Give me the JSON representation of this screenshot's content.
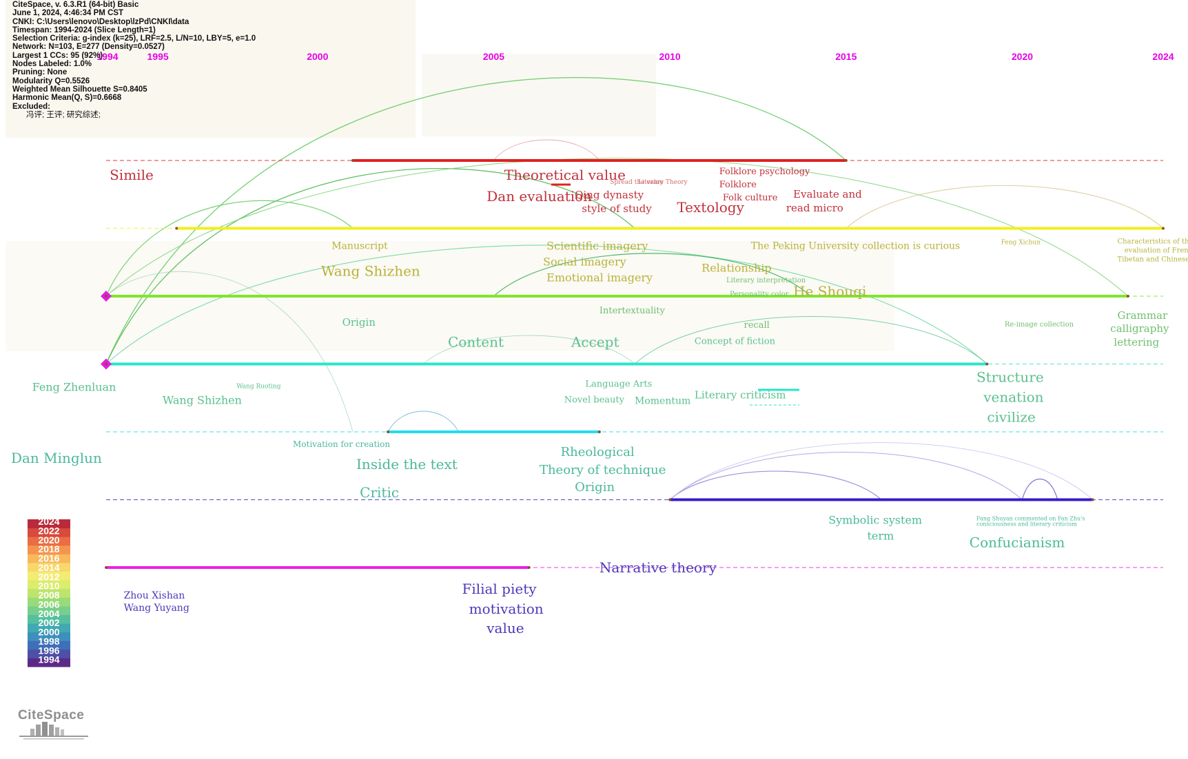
{
  "info_lines": [
    "CiteSpace, v. 6.3.R1 (64-bit) Basic",
    "June 1, 2024, 4:46:34 PM CST",
    "CNKI: C:\\Users\\lenovo\\Desktop\\lzPd\\CNKI\\data",
    "Timespan: 1994-2024 (Slice Length=1)",
    "Selection Criteria: g-index (k=25), LRF=2.5, L/N=10, LBY=5, e=1.0",
    "Network: N=103, E=277 (Density=0.0527)",
    "Largest 1 CCs: 95 (92%)",
    "Nodes Labeled: 1.0%",
    "Pruning: None",
    "Modularity Q=0.5526",
    "Weighted Mean Silhouette S=0.8405",
    "Harmonic Mean(Q, S)=0.6668",
    "Excluded:"
  ],
  "excluded_terms": "冯评; 王评; 研究综述;",
  "logo_text": "CiteSpace",
  "colors": {
    "year_label": "#e600e6",
    "cluster_node": "#e21ce0",
    "legend": [
      "#5b2a86",
      "#4e4fa7",
      "#3f6fb9",
      "#3d8fbd",
      "#42a9b2",
      "#56bfa0",
      "#77cf8b",
      "#9adb79",
      "#bde56d",
      "#dcec6b",
      "#f3ec73",
      "#f8d86a",
      "#f8b85c",
      "#f4944e",
      "#ea6d44",
      "#d84a3d",
      "#bb2a3a"
    ]
  },
  "chart_data": {
    "type": "timeline",
    "x_range": [
      1994,
      2024
    ],
    "year_ticks": [
      "1994",
      "1995",
      "2000",
      "2005",
      "2010",
      "2015",
      "2020",
      "2024"
    ],
    "lanes": [
      {
        "color": "#e02020",
        "start": 1994,
        "end": 2024,
        "active_start": 2001,
        "active_end": 2015,
        "start_node": false
      },
      {
        "color": "#f2ef1c",
        "start": 1994,
        "end": 2024,
        "active_start": 1996,
        "active_end": 2024,
        "start_node": false
      },
      {
        "color": "#7ee82a",
        "start": 1994,
        "end": 2024,
        "active_start": 1994,
        "active_end": 2023,
        "start_node": true
      },
      {
        "color": "#26e6c8",
        "start": 1994,
        "end": 2024,
        "active_start": 1994,
        "active_end": 2019,
        "start_node": true
      },
      {
        "color": "#25dbee",
        "start": 1994,
        "end": 2024,
        "active_start": 2002,
        "active_end": 2008,
        "start_node": false
      },
      {
        "color": "#3a1ac8",
        "start": 1994,
        "end": 2024,
        "active_start": 2010,
        "active_end": 2022,
        "start_node": false
      },
      {
        "color": "#ee1ee6",
        "start": 1994,
        "end": 2024,
        "active_start": 1994,
        "active_end": 2006,
        "start_node": false
      }
    ],
    "links": [
      {
        "from": [
          3,
          1994
        ],
        "to": [
          0,
          2015
        ],
        "color": "#5cc95c",
        "w": 1.3
      },
      {
        "from": [
          3,
          1994
        ],
        "to": [
          1,
          2009
        ],
        "color": "#49b44c",
        "w": 1.3
      },
      {
        "from": [
          2,
          1994
        ],
        "to": [
          1,
          2001
        ],
        "color": "#5cc95c",
        "w": 1.2
      },
      {
        "from": [
          2,
          1994
        ],
        "to": [
          2,
          2023
        ],
        "color": "#7fd47a",
        "w": 1.1
      },
      {
        "from": [
          3,
          1994
        ],
        "to": [
          3,
          2019
        ],
        "color": "#64d69a",
        "w": 1.1
      },
      {
        "from": [
          2,
          2005
        ],
        "to": [
          2,
          2014
        ],
        "color": "#2faa52",
        "w": 1.2
      },
      {
        "from": [
          1,
          2015
        ],
        "to": [
          1,
          2024
        ],
        "color": "#d6c78f",
        "w": 1.1
      },
      {
        "from": [
          3,
          2009
        ],
        "to": [
          3,
          2019
        ],
        "color": "#67c7a0",
        "w": 1.0
      },
      {
        "from": [
          3,
          2003
        ],
        "to": [
          3,
          2009
        ],
        "color": "#8fd0b0",
        "w": 0.8
      },
      {
        "from": [
          0,
          2005
        ],
        "to": [
          0,
          2008
        ],
        "color": "#e59aa0",
        "w": 0.9
      },
      {
        "from": [
          4,
          2002
        ],
        "to": [
          4,
          2004
        ],
        "color": "#6aaed0",
        "w": 1.0
      },
      {
        "from": [
          5,
          2010
        ],
        "to": [
          5,
          2016
        ],
        "color": "#8a7ed8",
        "w": 1.2
      },
      {
        "from": [
          5,
          2010
        ],
        "to": [
          5,
          2020
        ],
        "color": "#a39ae0",
        "w": 1.0
      },
      {
        "from": [
          5,
          2010
        ],
        "to": [
          5,
          2022
        ],
        "color": "#c2bdec",
        "w": 0.9
      },
      {
        "from": [
          5,
          2020
        ],
        "to": [
          5,
          2021
        ],
        "color": "#6a5ad0",
        "w": 1.2
      },
      {
        "from": [
          2,
          1994
        ],
        "to": [
          4,
          2001
        ],
        "color": "#9ad2b4",
        "w": 0.8
      }
    ],
    "clusters": [
      {
        "labels": [
          {
            "text": "Simile",
            "x": 1994.1,
            "size": 20,
            "color": "#c0303a"
          },
          {
            "text": "Theoretical value",
            "x": 2005.3,
            "size": 20,
            "color": "#c0303a"
          },
          {
            "text": "Dan evaluation",
            "x": 2004.8,
            "size": 20,
            "color": "#c0303a"
          },
          {
            "text": "Qing dynasty",
            "x": 2007.3,
            "size": 15,
            "color": "#c0303a"
          },
          {
            "text": "style of study",
            "x": 2007.5,
            "size": 15,
            "color": "#c0303a"
          },
          {
            "text": "Spread the value",
            "x": 2008.3,
            "size": 9,
            "color": "#d07070"
          },
          {
            "text": "Literary Theory",
            "x": 2009.1,
            "size": 9,
            "color": "#d07070"
          },
          {
            "text": "Folklore psychology",
            "x": 2011.4,
            "size": 13,
            "color": "#c0303a"
          },
          {
            "text": "Folklore",
            "x": 2011.4,
            "size": 13,
            "color": "#c0303a"
          },
          {
            "text": "Folk culture",
            "x": 2011.5,
            "size": 13,
            "color": "#c0303a"
          },
          {
            "text": "Textology",
            "x": 2010.2,
            "size": 20,
            "color": "#c0303a"
          },
          {
            "text": "Evaluate and",
            "x": 2013.5,
            "size": 15,
            "color": "#c0303a"
          },
          {
            "text": "read micro",
            "x": 2013.3,
            "size": 15,
            "color": "#c0303a"
          }
        ]
      },
      {
        "labels": [
          {
            "text": "Manuscript",
            "x": 2000.4,
            "size": 14,
            "color": "#b8b23a"
          },
          {
            "text": "Wang Shizhen",
            "x": 2000.1,
            "size": 20,
            "color": "#b8b23a"
          },
          {
            "text": "Scientific imagery",
            "x": 2006.5,
            "size": 16,
            "color": "#b8b23a"
          },
          {
            "text": "Social imagery",
            "x": 2006.4,
            "size": 16,
            "color": "#b8b23a"
          },
          {
            "text": "Emotional imagery",
            "x": 2006.5,
            "size": 16,
            "color": "#b8b23a"
          },
          {
            "text": "Relationship",
            "x": 2010.9,
            "size": 16,
            "color": "#b8b23a"
          },
          {
            "text": "The Peking University collection is curious",
            "x": 2012.3,
            "size": 14,
            "color": "#b8b23a"
          },
          {
            "text": "Feng Xichun",
            "x": 2019.4,
            "size": 9,
            "color": "#b8b23a"
          },
          {
            "text": "Characteristics of the",
            "x": 2022.7,
            "size": 10,
            "color": "#b8b23a"
          },
          {
            "text": "evaluation of French,",
            "x": 2022.9,
            "size": 10,
            "color": "#b8b23a"
          },
          {
            "text": "Tibetan and Chinese books",
            "x": 2022.7,
            "size": 10,
            "color": "#b8b23a"
          }
        ]
      },
      {
        "labels": [
          {
            "text": "He Shouqi",
            "x": 2013.5,
            "size": 20,
            "color": "#b8b23a"
          },
          {
            "text": "Intertextuality",
            "x": 2008.0,
            "size": 13,
            "color": "#6fbf6f"
          },
          {
            "text": "Literary interpretation",
            "x": 2011.6,
            "size": 10,
            "color": "#6fbf6f"
          },
          {
            "text": "Personality color",
            "x": 2011.7,
            "size": 10,
            "color": "#6fbf6f"
          },
          {
            "text": "recall",
            "x": 2012.1,
            "size": 13,
            "color": "#6fbf6f"
          },
          {
            "text": "Origin",
            "x": 2000.7,
            "size": 15,
            "color": "#5bc08e"
          },
          {
            "text": "Re-image collection",
            "x": 2019.5,
            "size": 10,
            "color": "#6fbf6f"
          },
          {
            "text": "Grammar",
            "x": 2022.7,
            "size": 15,
            "color": "#6fbf6f"
          },
          {
            "text": "calligraphy",
            "x": 2022.5,
            "size": 15,
            "color": "#6fbf6f"
          },
          {
            "text": "lettering",
            "x": 2022.6,
            "size": 15,
            "color": "#6fbf6f"
          }
        ]
      },
      {
        "labels": [
          {
            "text": "Content",
            "x": 2003.7,
            "size": 20,
            "color": "#5bc08e"
          },
          {
            "text": "Accept",
            "x": 2007.2,
            "size": 20,
            "color": "#5bc08e"
          },
          {
            "text": "Concept of fiction",
            "x": 2010.7,
            "size": 13,
            "color": "#5bc08e"
          },
          {
            "text": "Feng Zhenluan",
            "x": 1991.9,
            "size": 16,
            "color": "#5bc08e"
          },
          {
            "text": "Wang Ruoting",
            "x": 1997.7,
            "size": 9,
            "color": "#5bc08e"
          },
          {
            "text": "Language Arts",
            "x": 2007.6,
            "size": 13,
            "color": "#5bc08e"
          },
          {
            "text": "Novel beauty",
            "x": 2007.0,
            "size": 13,
            "color": "#5bc08e"
          },
          {
            "text": "Momentum",
            "x": 2009.0,
            "size": 14,
            "color": "#5bc08e"
          },
          {
            "text": "Literary criticism",
            "x": 2010.7,
            "size": 15,
            "color": "#5bc08e"
          },
          {
            "text": "Structure",
            "x": 2018.7,
            "size": 20,
            "color": "#5bc08e"
          },
          {
            "text": "venation",
            "x": 2018.9,
            "size": 20,
            "color": "#5bc08e"
          },
          {
            "text": "civilize",
            "x": 2019.0,
            "size": 20,
            "color": "#5bc08e"
          },
          {
            "text": "Wang Shizhen",
            "x": 1995.6,
            "size": 16,
            "color": "#5bc08e"
          }
        ]
      },
      {
        "labels": [
          {
            "text": "Dan Minglun",
            "x": 1991.3,
            "size": 20,
            "color": "#4bb89a"
          },
          {
            "text": "Motivation for creation",
            "x": 1999.3,
            "size": 12,
            "color": "#4bb89a"
          },
          {
            "text": "Inside the text",
            "x": 2001.1,
            "size": 20,
            "color": "#4bb89a"
          },
          {
            "text": "Critic",
            "x": 2001.2,
            "size": 20,
            "color": "#4bb89a"
          },
          {
            "text": "Rheological",
            "x": 2006.9,
            "size": 18,
            "color": "#4bb89a"
          },
          {
            "text": "Theory of technique",
            "x": 2006.3,
            "size": 18,
            "color": "#4bb89a"
          },
          {
            "text": "Origin",
            "x": 2007.3,
            "size": 18,
            "color": "#4bb89a"
          }
        ]
      },
      {
        "labels": [
          {
            "text": "Symbolic system",
            "x": 2014.5,
            "size": 16,
            "color": "#4bb89a"
          },
          {
            "text": "term",
            "x": 2015.6,
            "size": 16,
            "color": "#4bb89a"
          },
          {
            "text": "Fang Shuyan commented on Fan Zhu's",
            "x": 2018.7,
            "size": 8,
            "color": "#4bb89a"
          },
          {
            "text": "consciousness and literary criticism",
            "x": 2018.7,
            "size": 8,
            "color": "#4bb89a"
          },
          {
            "text": "Confucianism",
            "x": 2018.5,
            "size": 20,
            "color": "#4bb89a"
          }
        ]
      },
      {
        "labels": [
          {
            "text": "Narrative theory",
            "x": 2008.0,
            "size": 20,
            "color": "#4a3ab8"
          },
          {
            "text": "Zhou Xishan",
            "x": 1994.5,
            "size": 14,
            "color": "#4a3ab8"
          },
          {
            "text": "Wang Yuyang",
            "x": 1994.5,
            "size": 14,
            "color": "#4a3ab8"
          },
          {
            "text": "Filial piety",
            "x": 2004.1,
            "size": 20,
            "color": "#4a3ab8"
          },
          {
            "text": "motivation",
            "x": 2004.3,
            "size": 20,
            "color": "#4a3ab8"
          },
          {
            "text": "value",
            "x": 2004.8,
            "size": 20,
            "color": "#4a3ab8"
          }
        ]
      }
    ],
    "legend_years": [
      "2024",
      "2022",
      "2020",
      "2018",
      "2016",
      "2014",
      "2012",
      "2010",
      "2008",
      "2006",
      "2004",
      "2002",
      "2000",
      "1998",
      "1996",
      "1994"
    ]
  }
}
